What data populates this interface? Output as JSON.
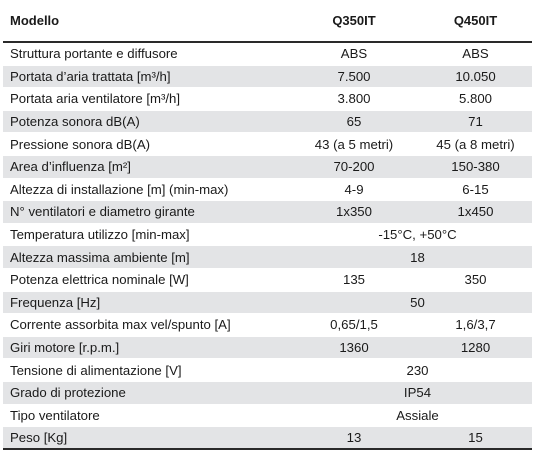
{
  "header": {
    "label": "Modello",
    "col_a": "Q350IT",
    "col_b": "Q450IT"
  },
  "rows": [
    {
      "label": "Struttura portante e diffusore",
      "a": "ABS",
      "b": "ABS"
    },
    {
      "label": "Portata d’aria trattata [m³/h]",
      "a": "7.500",
      "b": "10.050"
    },
    {
      "label": "Portata aria ventilatore [m³/h]",
      "a": "3.800",
      "b": "5.800"
    },
    {
      "label": "Potenza sonora dB(A)",
      "a": "65",
      "b": "71"
    },
    {
      "label": "Pressione sonora dB(A)",
      "a": "43 (a 5 metri)",
      "b": "45 (a 8 metri)"
    },
    {
      "label": "Area d’influenza [m²]",
      "a": "70-200",
      "b": "150-380"
    },
    {
      "label": "Altezza di installazione [m] (min-max)",
      "a": "4-9",
      "b": "6-15"
    },
    {
      "label": "N° ventilatori e diametro girante",
      "a": "1x350",
      "b": "1x450"
    },
    {
      "label": "Temperatura utilizzo [min-max]",
      "span": "-15°C, +50°C"
    },
    {
      "label": "Altezza massima ambiente [m]",
      "span": "18"
    },
    {
      "label": "Potenza elettrica nominale [W]",
      "a": "135",
      "b": "350"
    },
    {
      "label": "Frequenza [Hz]",
      "span": "50"
    },
    {
      "label": "Corrente assorbita max vel/spunto [A]",
      "a": "0,65/1,5",
      "b": "1,6/3,7"
    },
    {
      "label": "Giri motore [r.p.m.]",
      "a": "1360",
      "b": "1280"
    },
    {
      "label": "Tensione di alimentazione [V]",
      "span": "230"
    },
    {
      "label": "Grado di protezione",
      "span": "IP54"
    },
    {
      "label": "Tipo ventilatore",
      "span": "Assiale"
    },
    {
      "label": "Peso [Kg]",
      "a": "13",
      "b": "15"
    }
  ],
  "colors": {
    "shaded_row": "#e3e4e6",
    "rule": "#2a2a2a"
  }
}
